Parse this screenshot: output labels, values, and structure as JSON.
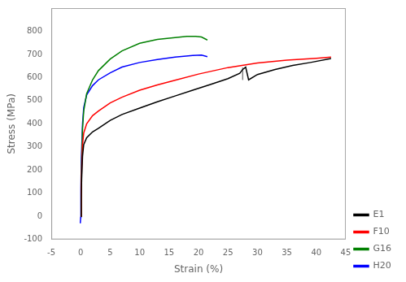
{
  "chart_data": {
    "type": "line",
    "xlabel": "Strain (%)",
    "ylabel": "Stress (MPa)",
    "xlim": [
      -5,
      45
    ],
    "ylim": [
      -100,
      900
    ],
    "xticks": [
      -5,
      0,
      5,
      10,
      15,
      20,
      25,
      30,
      35,
      40,
      45
    ],
    "yticks": [
      -100,
      0,
      100,
      200,
      300,
      400,
      500,
      600,
      700,
      800
    ],
    "grid": false,
    "legend": "lower right",
    "series": [
      {
        "name": "E1",
        "color": "black",
        "x": [
          0.0,
          0.08,
          0.15,
          0.3,
          0.5,
          1.0,
          2.0,
          3.0,
          5.0,
          7.0,
          10.0,
          13.0,
          16.0,
          19.0,
          22.0,
          25.0,
          27.0,
          27.5,
          28.0,
          28.5,
          30.0,
          33.0,
          36.0,
          39.0,
          42.5
        ],
        "values": [
          0,
          80,
          160,
          260,
          310,
          340,
          365,
          380,
          415,
          440,
          468,
          495,
          520,
          545,
          570,
          595,
          618,
          635,
          645,
          590,
          613,
          635,
          652,
          665,
          682
        ]
      },
      {
        "name": "F10",
        "color": "red",
        "x": [
          0.0,
          0.08,
          0.15,
          0.3,
          0.5,
          1.0,
          2.0,
          3.0,
          5.0,
          7.0,
          10.0,
          13.0,
          16.0,
          20.0,
          25.0,
          30.0,
          35.0,
          40.0,
          42.5
        ],
        "values": [
          0,
          100,
          200,
          310,
          360,
          400,
          435,
          455,
          490,
          515,
          545,
          568,
          588,
          615,
          643,
          663,
          675,
          683,
          688
        ]
      },
      {
        "name": "G16",
        "color": "green",
        "x": [
          0.0,
          0.08,
          0.15,
          0.3,
          0.5,
          1.0,
          2.0,
          3.0,
          5.0,
          7.0,
          10.0,
          13.0,
          16.0,
          18.0,
          19.5,
          20.5,
          21.5
        ],
        "values": [
          0,
          120,
          240,
          380,
          455,
          530,
          590,
          630,
          680,
          715,
          748,
          765,
          773,
          778,
          778,
          775,
          762
        ]
      },
      {
        "name": "H20",
        "color": "blue",
        "x": [
          -0.08,
          -0.02,
          0.0,
          0.05,
          0.1,
          0.3,
          0.5,
          1.0,
          2.0,
          3.0,
          5.0,
          7.0,
          10.0,
          13.0,
          16.0,
          19.0,
          20.5,
          21.5
        ],
        "values": [
          -30,
          -5,
          10,
          120,
          250,
          400,
          470,
          525,
          565,
          590,
          620,
          645,
          665,
          678,
          688,
          695,
          697,
          690
        ]
      },
      {
        "color": "gray",
        "x": [
          27.5,
          27.5
        ],
        "values": [
          643,
          590
        ]
      }
    ]
  }
}
